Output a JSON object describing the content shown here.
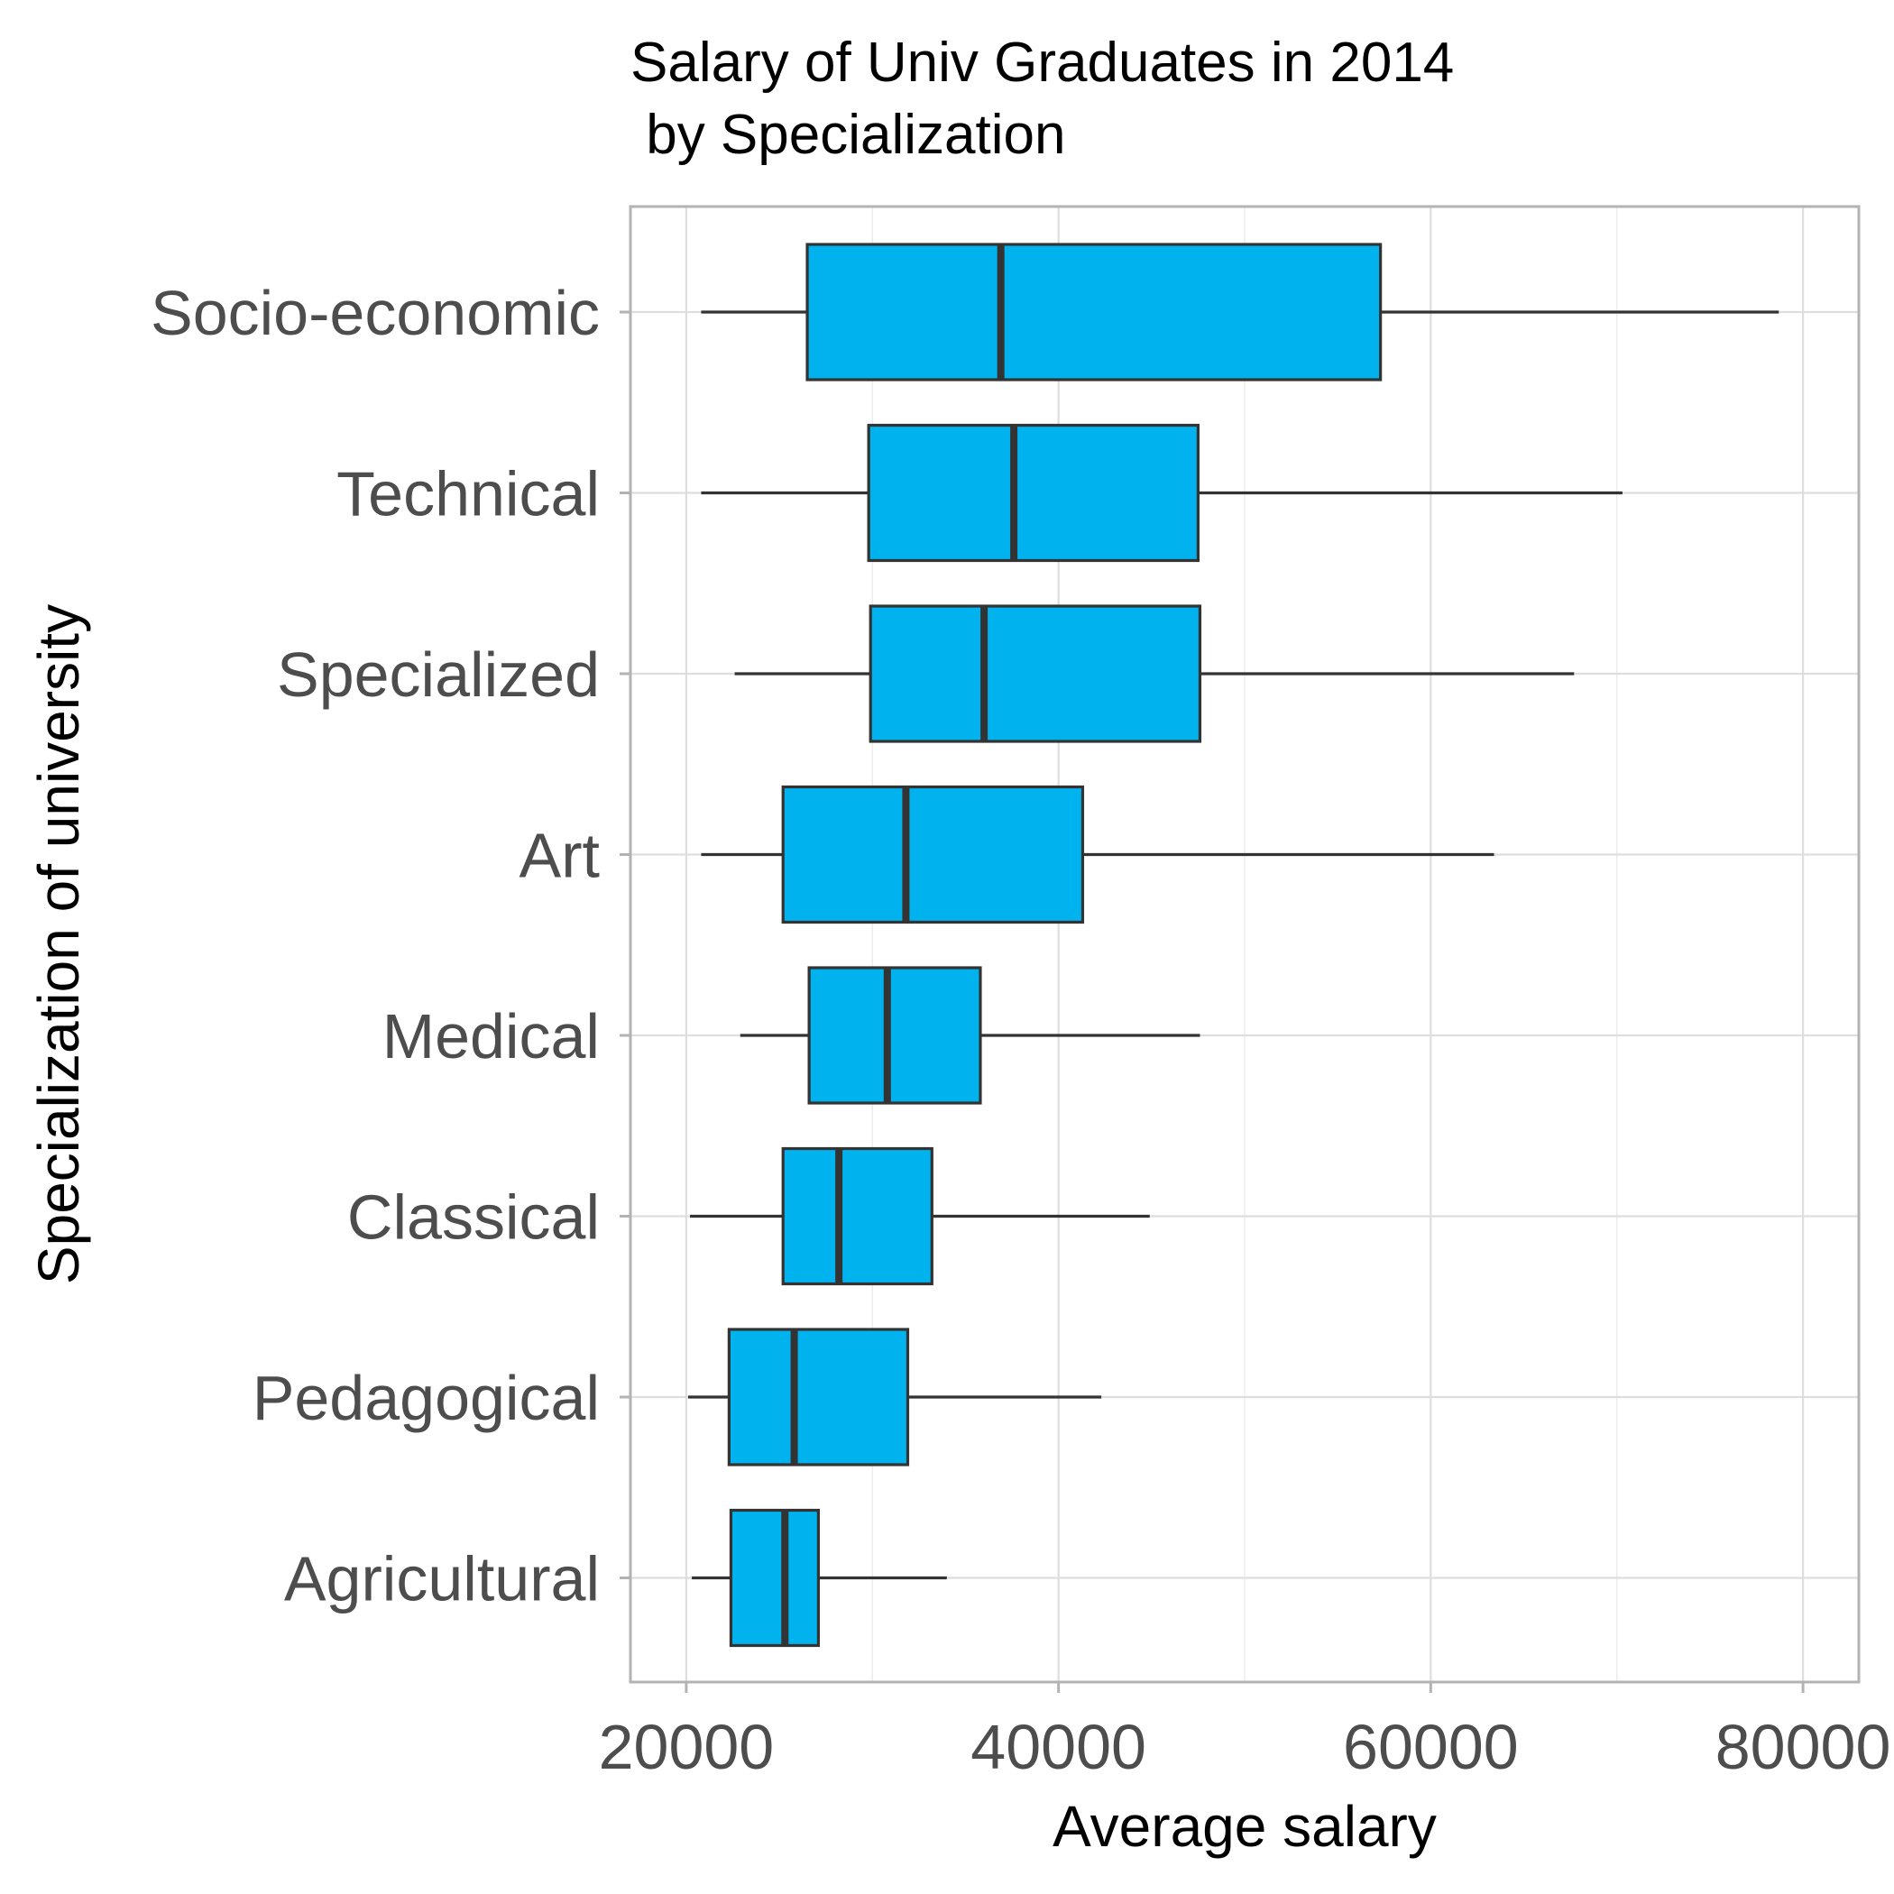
{
  "chart_data": {
    "type": "boxplot",
    "orientation": "horizontal",
    "title_lines": [
      "Salary of Univ Graduates in 2014",
      " by Specialization"
    ],
    "xlabel": "Average salary",
    "ylabel": "Specialization of university",
    "xlim": [
      17000,
      83000
    ],
    "x_ticks": [
      20000,
      40000,
      60000,
      80000
    ],
    "x_tick_labels": [
      "20000",
      "40000",
      "60000",
      "80000"
    ],
    "box_fill": "#00b2ee",
    "box_stroke": "#333333",
    "categories": [
      "Socio-economic",
      "Technical",
      "Specialized",
      "Art",
      "Medical",
      "Classical",
      "Pedagogical",
      "Agricultural"
    ],
    "boxes": [
      {
        "label": "Socio-economic",
        "whisker_low": 20800,
        "q1": 26500,
        "median": 36900,
        "q3": 57300,
        "whisker_high": 78700
      },
      {
        "label": "Technical",
        "whisker_low": 20800,
        "q1": 29800,
        "median": 37600,
        "q3": 47500,
        "whisker_high": 70300
      },
      {
        "label": "Specialized",
        "whisker_low": 22600,
        "q1": 29900,
        "median": 36000,
        "q3": 47600,
        "whisker_high": 67700
      },
      {
        "label": "Art",
        "whisker_low": 20800,
        "q1": 25200,
        "median": 31800,
        "q3": 41300,
        "whisker_high": 63400
      },
      {
        "label": "Medical",
        "whisker_low": 22900,
        "q1": 26600,
        "median": 30800,
        "q3": 35800,
        "whisker_high": 47600
      },
      {
        "label": "Classical",
        "whisker_low": 20200,
        "q1": 25200,
        "median": 28200,
        "q3": 33200,
        "whisker_high": 44900
      },
      {
        "label": "Pedagogical",
        "whisker_low": 20100,
        "q1": 22300,
        "median": 25800,
        "q3": 31900,
        "whisker_high": 42300
      },
      {
        "label": "Agricultural",
        "whisker_low": 20300,
        "q1": 22400,
        "median": 25300,
        "q3": 27100,
        "whisker_high": 34000
      }
    ]
  }
}
